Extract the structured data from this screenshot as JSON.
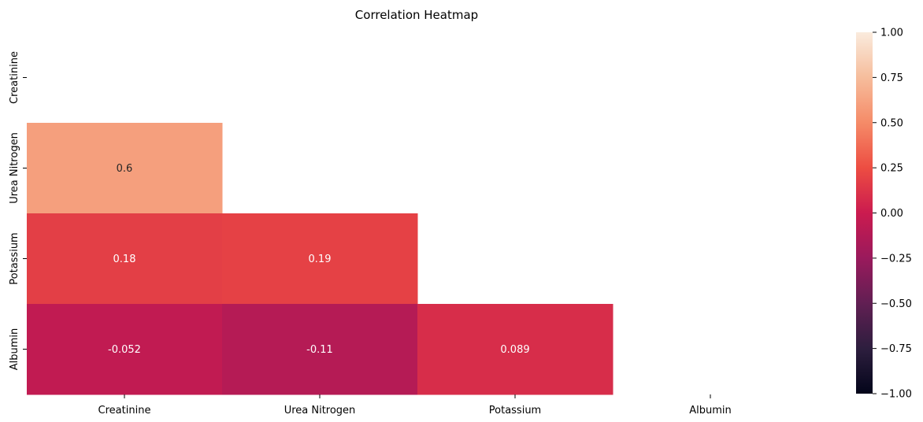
{
  "chart_data": {
    "type": "heatmap",
    "title": "Correlation Heatmap",
    "xlabel": "",
    "ylabel": "",
    "mask": "upper-triangle including diagonal",
    "x_categories": [
      "Creatinine",
      "Urea Nitrogen",
      "Potassium",
      "Albumin"
    ],
    "y_categories": [
      "Creatinine",
      "Urea Nitrogen",
      "Potassium",
      "Albumin"
    ],
    "cells": [
      {
        "row": "Urea Nitrogen",
        "col": "Creatinine",
        "value": 0.6,
        "label": "0.6"
      },
      {
        "row": "Potassium",
        "col": "Creatinine",
        "value": 0.18,
        "label": "0.18"
      },
      {
        "row": "Potassium",
        "col": "Urea Nitrogen",
        "value": 0.19,
        "label": "0.19"
      },
      {
        "row": "Albumin",
        "col": "Creatinine",
        "value": -0.052,
        "label": "-0.052"
      },
      {
        "row": "Albumin",
        "col": "Urea Nitrogen",
        "value": -0.11,
        "label": "-0.11"
      },
      {
        "row": "Albumin",
        "col": "Potassium",
        "value": 0.089,
        "label": "0.089"
      }
    ],
    "colorbar": {
      "vmin": -1.0,
      "vmax": 1.0,
      "ticks": [
        "1.00",
        "0.75",
        "0.50",
        "0.25",
        "0.00",
        "−0.25",
        "−0.50",
        "−0.75",
        "−1.00"
      ],
      "colormap": "rocket"
    }
  }
}
